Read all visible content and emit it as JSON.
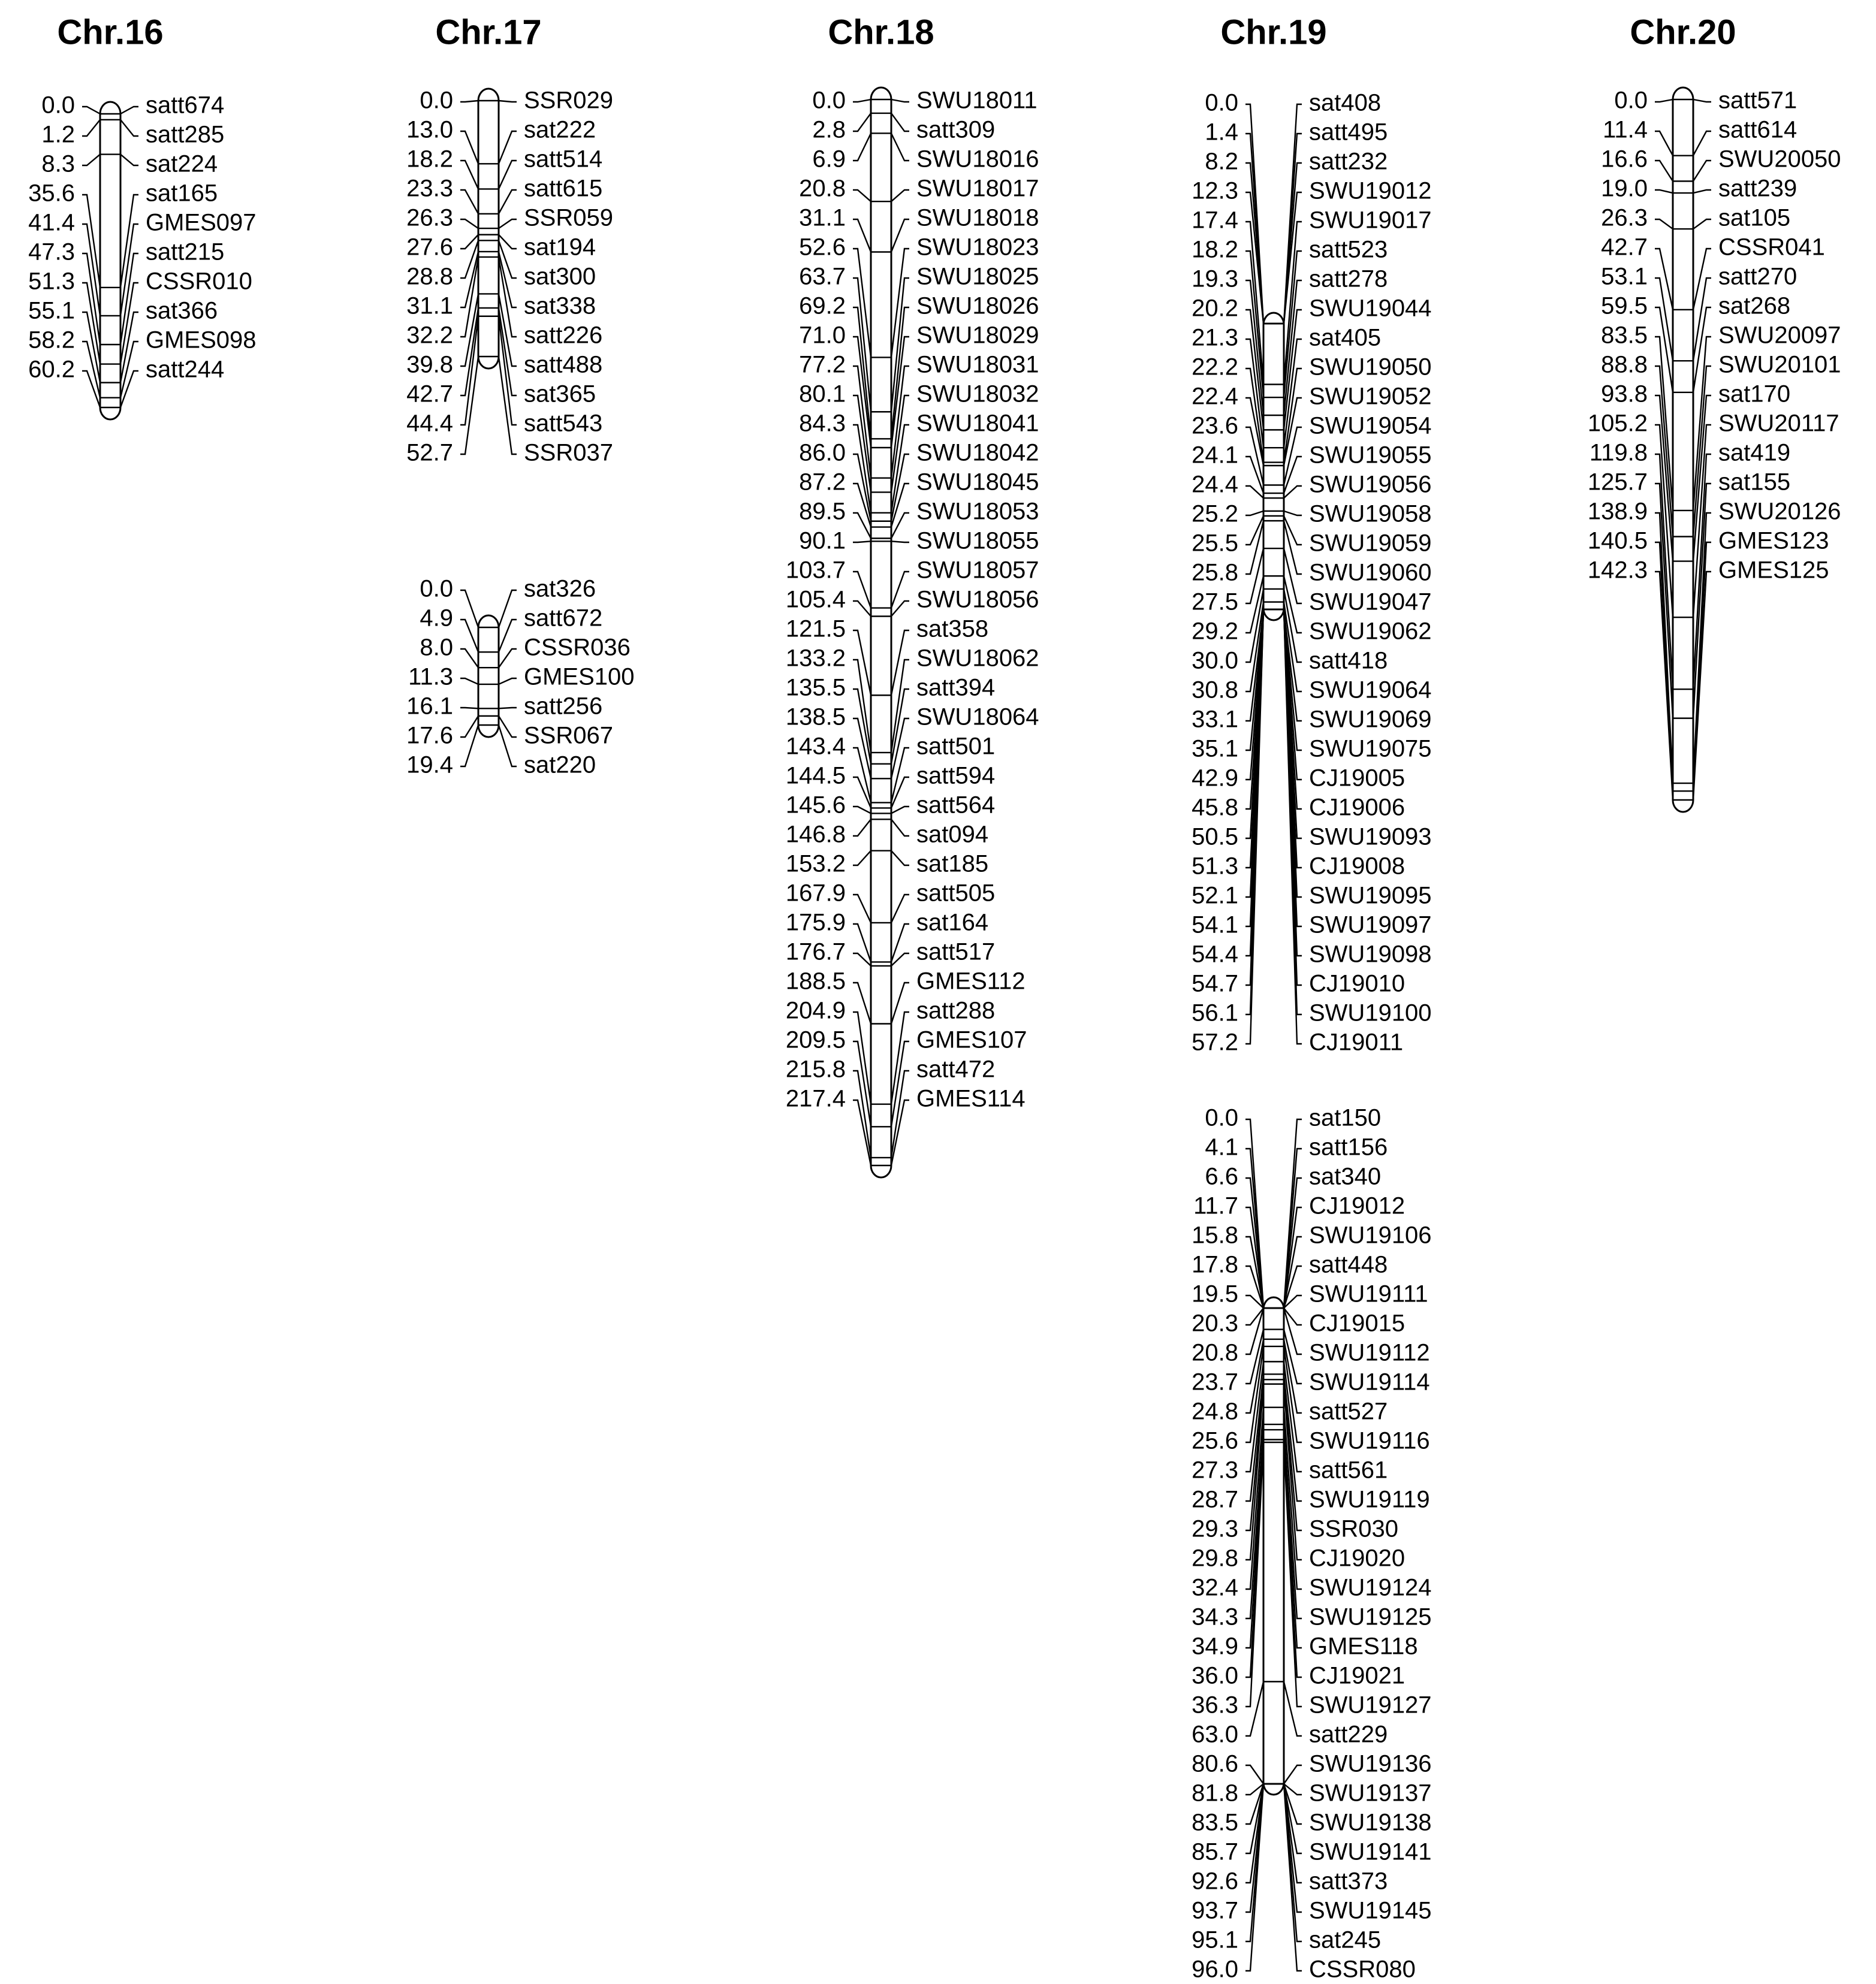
{
  "chromosomes": [
    {
      "title": "Chr.16",
      "groups": [
        {
          "positions": [
            "0.0",
            "1.2",
            "8.3",
            "35.6",
            "41.4",
            "47.3",
            "51.3",
            "55.1",
            "58.2",
            "60.2"
          ],
          "markers": [
            "satt674",
            "satt285",
            "sat224",
            "sat165",
            "GMES097",
            "satt215",
            "CSSR010",
            "sat366",
            "GMES098",
            "satt244"
          ]
        }
      ]
    },
    {
      "title": "Chr.17",
      "groups": [
        {
          "positions": [
            "0.0",
            "13.0",
            "18.2",
            "23.3",
            "26.3",
            "27.6",
            "28.8",
            "31.1",
            "32.2",
            "39.8",
            "42.7",
            "44.4",
            "52.7"
          ],
          "markers": [
            "SSR029",
            "sat222",
            "satt514",
            "satt615",
            "SSR059",
            "sat194",
            "sat300",
            "sat338",
            "satt226",
            "satt488",
            "sat365",
            "satt543",
            "SSR037"
          ]
        },
        {
          "positions": [
            "0.0",
            "4.9",
            "8.0",
            "11.3",
            "16.1",
            "17.6",
            "19.4"
          ],
          "markers": [
            "sat326",
            "satt672",
            "CSSR036",
            "GMES100",
            "satt256",
            "SSR067",
            "sat220"
          ]
        }
      ]
    },
    {
      "title": "Chr.18",
      "groups": [
        {
          "positions": [
            "0.0",
            "2.8",
            "6.9",
            "20.8",
            "31.1",
            "52.6",
            "63.7",
            "69.2",
            "71.0",
            "77.2",
            "80.1",
            "84.3",
            "86.0",
            "87.2",
            "89.5",
            "90.1",
            "103.7",
            "105.4",
            "121.5",
            "133.2",
            "135.5",
            "138.5",
            "143.4",
            "144.5",
            "145.6",
            "146.8",
            "153.2",
            "167.9",
            "175.9",
            "176.7",
            "188.5",
            "204.9",
            "209.5",
            "215.8",
            "217.4"
          ],
          "markers": [
            "SWU18011",
            "satt309",
            "SWU18016",
            "SWU18017",
            "SWU18018",
            "SWU18023",
            "SWU18025",
            "SWU18026",
            "SWU18029",
            "SWU18031",
            "SWU18032",
            "SWU18041",
            "SWU18042",
            "SWU18045",
            "SWU18053",
            "SWU18055",
            "SWU18057",
            "SWU18056",
            "sat358",
            "SWU18062",
            "satt394",
            "SWU18064",
            "satt501",
            "satt594",
            "satt564",
            "sat094",
            "sat185",
            "satt505",
            "sat164",
            "satt517",
            "GMES112",
            "satt288",
            "GMES107",
            "satt472",
            "GMES114"
          ]
        }
      ]
    },
    {
      "title": "Chr.19",
      "groups": [
        {
          "positions": [
            "0.0",
            "1.4",
            "8.2",
            "12.3",
            "17.4",
            "18.2",
            "19.3",
            "20.2",
            "21.3",
            "22.2",
            "22.4",
            "23.6",
            "24.1",
            "24.4",
            "25.2",
            "25.5",
            "25.8",
            "27.5",
            "29.2",
            "30.0",
            "30.8",
            "33.1",
            "35.1",
            "42.9",
            "45.8",
            "50.5",
            "51.3",
            "52.1",
            "54.1",
            "54.4",
            "54.7",
            "56.1",
            "57.2"
          ],
          "markers": [
            "sat408",
            "satt495",
            "satt232",
            "SWU19012",
            "SWU19017",
            "satt523",
            "satt278",
            "SWU19044",
            "sat405",
            "SWU19050",
            "SWU19052",
            "SWU19054",
            "SWU19055",
            "SWU19056",
            "SWU19058",
            "SWU19059",
            "SWU19060",
            "SWU19047",
            "SWU19062",
            "satt418",
            "SWU19064",
            "SWU19069",
            "SWU19075",
            "CJ19005",
            "CJ19006",
            "SWU19093",
            "CJ19008",
            "SWU19095",
            "SWU19097",
            "SWU19098",
            "CJ19010",
            "SWU19100",
            "CJ19011"
          ]
        },
        {
          "positions": [
            "0.0",
            "4.1",
            "6.6",
            "11.7",
            "15.8",
            "17.8",
            "19.5",
            "20.3",
            "20.8",
            "23.7",
            "24.8",
            "25.6",
            "27.3",
            "28.7",
            "29.3",
            "29.8",
            "32.4",
            "34.3",
            "34.9",
            "36.0",
            "36.3",
            "63.0",
            "80.6",
            "81.8",
            "83.5",
            "85.7",
            "92.6",
            "93.7",
            "95.1",
            "96.0"
          ],
          "markers": [
            "sat150",
            "satt156",
            "sat340",
            "CJ19012",
            "SWU19106",
            "satt448",
            "SWU19111",
            "CJ19015",
            "SWU19112",
            "SWU19114",
            "satt527",
            "SWU19116",
            "satt561",
            "SWU19119",
            "SSR030",
            "CJ19020",
            "SWU19124",
            "SWU19125",
            "GMES118",
            "CJ19021",
            "SWU19127",
            "satt229",
            "SWU19136",
            "SWU19137",
            "SWU19138",
            "SWU19141",
            "satt373",
            "SWU19145",
            "sat245",
            "CSSR080"
          ]
        }
      ]
    },
    {
      "title": "Chr.20",
      "groups": [
        {
          "positions": [
            "0.0",
            "11.4",
            "16.6",
            "19.0",
            "26.3",
            "42.7",
            "53.1",
            "59.5",
            "83.5",
            "88.8",
            "93.8",
            "105.2",
            "119.8",
            "125.7",
            "138.9",
            "140.5",
            "142.3"
          ],
          "markers": [
            "satt571",
            "satt614",
            "SWU20050",
            "satt239",
            "sat105",
            "CSSR041",
            "satt270",
            "sat268",
            "SWU20097",
            "SWU20101",
            "sat170",
            "SWU20117",
            "sat419",
            "sat155",
            "SWU20126",
            "GMES123",
            "GMES125"
          ]
        }
      ]
    }
  ]
}
